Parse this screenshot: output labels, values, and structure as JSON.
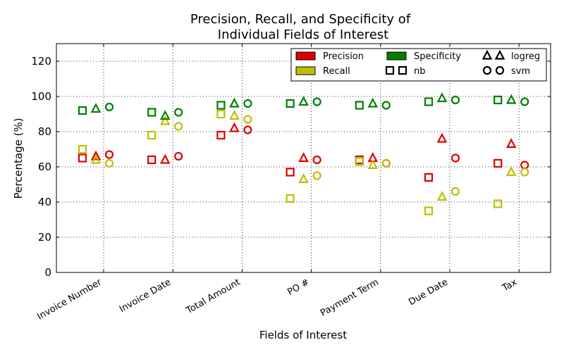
{
  "chart_data": {
    "type": "scatter",
    "title": "Precision, Recall, and Specificity of",
    "title_line2": "Individual Fields of Interest",
    "xlabel": "Fields of Interest",
    "ylabel": "Percentage (%)",
    "ylim": [
      0,
      130
    ],
    "yticks": [
      0,
      20,
      40,
      60,
      80,
      100,
      120
    ],
    "grid": true,
    "legend_position": "top-right",
    "categories": [
      "Invoice Number",
      "Invoice Date",
      "Total Amount",
      "PO #",
      "Payment Term",
      "Due Date",
      "Tax"
    ],
    "metrics": [
      {
        "name": "Precision",
        "color": "#dd0000"
      },
      {
        "name": "Recall",
        "color": "#bfbf00"
      },
      {
        "name": "Specificity",
        "color": "#007f00"
      }
    ],
    "models": [
      {
        "name": "nb",
        "marker": "square"
      },
      {
        "name": "logreg",
        "marker": "triangle"
      },
      {
        "name": "svm",
        "marker": "circle"
      }
    ],
    "series": [
      {
        "metric": "Precision",
        "model": "nb",
        "values": [
          65,
          64,
          78,
          57,
          64,
          54,
          62
        ]
      },
      {
        "metric": "Recall",
        "model": "nb",
        "values": [
          70,
          78,
          90,
          42,
          63,
          35,
          39
        ]
      },
      {
        "metric": "Specificity",
        "model": "nb",
        "values": [
          92,
          91,
          95,
          96,
          95,
          97,
          98
        ]
      },
      {
        "metric": "Precision",
        "model": "logreg",
        "values": [
          66,
          64,
          82,
          65,
          65,
          76,
          73
        ]
      },
      {
        "metric": "Recall",
        "model": "logreg",
        "values": [
          64,
          86,
          89,
          53,
          61,
          43,
          57
        ]
      },
      {
        "metric": "Specificity",
        "model": "logreg",
        "values": [
          93,
          89,
          96,
          97,
          96,
          99,
          98
        ]
      },
      {
        "metric": "Precision",
        "model": "svm",
        "values": [
          67,
          66,
          81,
          64,
          62,
          65,
          61
        ]
      },
      {
        "metric": "Recall",
        "model": "svm",
        "values": [
          62,
          83,
          87,
          55,
          62,
          46,
          57
        ]
      },
      {
        "metric": "Specificity",
        "model": "svm",
        "values": [
          94,
          91,
          96,
          97,
          95,
          98,
          97
        ]
      }
    ]
  }
}
